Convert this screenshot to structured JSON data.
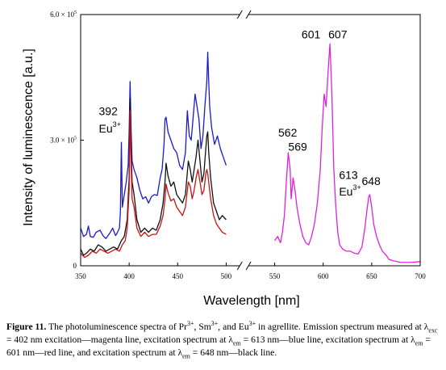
{
  "chart_data": {
    "type": "line",
    "xlabel": "Wavelength [nm]",
    "ylabel": "Intensity of luminescence [a.u.]",
    "x_ticks": [
      350,
      400,
      450,
      500,
      550,
      600,
      650,
      700
    ],
    "y_ticks": [
      {
        "value": 0,
        "label": "0"
      },
      {
        "value": 300000,
        "label_base": "3.0 × 10",
        "label_exp": "5"
      },
      {
        "value": 600000,
        "label_base": "6.0 × 10",
        "label_exp": "5"
      }
    ],
    "xlim": [
      350,
      700
    ],
    "ylim": [
      0,
      600000
    ],
    "axis_break": "between 500 and 550 nm",
    "grid": false,
    "annotations": [
      {
        "text": "392",
        "x": 392,
        "y": 360000
      },
      {
        "text": "Eu",
        "sup": "3+",
        "x": 392,
        "y": 318000
      },
      {
        "text": "601",
        "x": 601,
        "y": 543000
      },
      {
        "text": "607",
        "x": 607,
        "y": 543000
      },
      {
        "text": "562",
        "x": 562,
        "y": 309000
      },
      {
        "text": "569",
        "x": 569,
        "y": 275000
      },
      {
        "text": "613",
        "x": 613,
        "y": 207000
      },
      {
        "text": "Eu",
        "sup": "3+",
        "x": 613,
        "y": 168000
      },
      {
        "text": "648",
        "x": 648,
        "y": 193000
      }
    ],
    "series": [
      {
        "color": "#1a1acc",
        "x": [
          350,
          353,
          356,
          358,
          360,
          363,
          366,
          370,
          373,
          376,
          380,
          383,
          386,
          388,
          390,
          391,
          392,
          393,
          395,
          397,
          399,
          400,
          401,
          402,
          403,
          405,
          408,
          411,
          414,
          417,
          420,
          423,
          426,
          429,
          432,
          434,
          436,
          437,
          438,
          440,
          443,
          446,
          449,
          452,
          455,
          458,
          460,
          462,
          464,
          466,
          468,
          470,
          472,
          474,
          476,
          478,
          480,
          481,
          482,
          483,
          485,
          488,
          491,
          494,
          497,
          500
        ],
        "y": [
          90000,
          70000,
          75000,
          95000,
          70000,
          68000,
          80000,
          85000,
          72000,
          65000,
          78000,
          90000,
          72000,
          80000,
          90000,
          130000,
          295000,
          140000,
          170000,
          200000,
          240000,
          320000,
          440000,
          330000,
          250000,
          230000,
          210000,
          180000,
          160000,
          165000,
          150000,
          165000,
          170000,
          168000,
          210000,
          230000,
          290000,
          350000,
          355000,
          320000,
          300000,
          280000,
          270000,
          240000,
          230000,
          270000,
          370000,
          310000,
          300000,
          355000,
          410000,
          380000,
          350000,
          280000,
          310000,
          380000,
          440000,
          510000,
          440000,
          380000,
          330000,
          290000,
          310000,
          280000,
          260000,
          240000
        ]
      },
      {
        "color": "#111111",
        "x": [
          350,
          353,
          356,
          360,
          364,
          368,
          372,
          376,
          380,
          384,
          388,
          392,
          395,
          398,
          400,
          401,
          402,
          403,
          405,
          408,
          412,
          416,
          420,
          424,
          428,
          432,
          435,
          437,
          438,
          440,
          443,
          446,
          449,
          452,
          455,
          458,
          461,
          463,
          465,
          467,
          469,
          471,
          473,
          475,
          477,
          479,
          480,
          481,
          482,
          484,
          487,
          490,
          493,
          496,
          500
        ],
        "y": [
          40000,
          25000,
          30000,
          40000,
          35000,
          50000,
          45000,
          35000,
          40000,
          45000,
          40000,
          60000,
          70000,
          110000,
          210000,
          400000,
          280000,
          200000,
          170000,
          110000,
          80000,
          90000,
          80000,
          90000,
          85000,
          110000,
          150000,
          200000,
          245000,
          215000,
          190000,
          200000,
          170000,
          160000,
          150000,
          170000,
          250000,
          230000,
          200000,
          230000,
          260000,
          300000,
          250000,
          200000,
          220000,
          280000,
          310000,
          320000,
          270000,
          210000,
          150000,
          130000,
          110000,
          120000,
          110000
        ]
      },
      {
        "color": "#cc1111",
        "x": [
          350,
          354,
          358,
          362,
          366,
          370,
          374,
          378,
          382,
          386,
          390,
          393,
          396,
          398,
          400,
          401,
          402,
          403,
          405,
          408,
          412,
          416,
          420,
          424,
          428,
          432,
          435,
          437,
          438,
          440,
          443,
          446,
          449,
          452,
          455,
          458,
          461,
          463,
          465,
          467,
          469,
          471,
          473,
          475,
          477,
          479,
          480,
          481,
          482,
          484,
          487,
          490,
          493,
          496,
          500
        ],
        "y": [
          30000,
          20000,
          25000,
          35000,
          30000,
          40000,
          35000,
          30000,
          35000,
          40000,
          35000,
          50000,
          60000,
          90000,
          180000,
          370000,
          250000,
          160000,
          140000,
          90000,
          70000,
          80000,
          70000,
          75000,
          75000,
          95000,
          120000,
          160000,
          195000,
          175000,
          155000,
          160000,
          140000,
          130000,
          120000,
          140000,
          200000,
          190000,
          160000,
          180000,
          210000,
          230000,
          200000,
          170000,
          180000,
          220000,
          230000,
          220000,
          200000,
          160000,
          120000,
          100000,
          90000,
          80000,
          75000
        ]
      },
      {
        "color": "#dd22dd",
        "x": [
          550,
          553,
          556,
          558,
          560,
          562,
          564,
          566,
          567,
          569,
          571,
          573,
          576,
          579,
          582,
          585,
          588,
          591,
          594,
          597,
          599,
          601,
          603,
          605,
          607,
          609,
          611,
          613,
          615,
          617,
          620,
          624,
          628,
          632,
          636,
          640,
          643,
          645,
          647,
          648,
          650,
          652,
          655,
          658,
          661,
          665,
          668,
          672,
          676,
          680,
          690,
          700
        ],
        "y": [
          60000,
          70000,
          55000,
          80000,
          120000,
          200000,
          270000,
          230000,
          160000,
          210000,
          180000,
          140000,
          100000,
          70000,
          55000,
          50000,
          70000,
          100000,
          150000,
          230000,
          330000,
          410000,
          380000,
          460000,
          530000,
          410000,
          230000,
          140000,
          80000,
          50000,
          40000,
          35000,
          35000,
          30000,
          28000,
          45000,
          90000,
          130000,
          165000,
          170000,
          140000,
          100000,
          70000,
          50000,
          35000,
          25000,
          15000,
          12000,
          10000,
          8000,
          8000,
          10000
        ]
      }
    ]
  },
  "caption": {
    "label": "Figure 11.",
    "segments": [
      {
        "t": " The photoluminescence spectra of Pr"
      },
      {
        "sup": "3+"
      },
      {
        "t": ", Sm"
      },
      {
        "sup": "3+"
      },
      {
        "t": ", and Eu"
      },
      {
        "sup": "3+"
      },
      {
        "t": " in agrellite. Emission spectrum measured at λ"
      },
      {
        "sub": "exc"
      },
      {
        "t": " = 402 nm excitation—magenta line, excitation spectrum at λ"
      },
      {
        "sub": "em"
      },
      {
        "t": " = 613 nm—blue line, excitation spectrum at λ"
      },
      {
        "sub": "em"
      },
      {
        "t": " = 601 nm—red line, and excitation spectrum at λ"
      },
      {
        "sub": "em"
      },
      {
        "t": " = 648 nm—black line."
      }
    ]
  }
}
